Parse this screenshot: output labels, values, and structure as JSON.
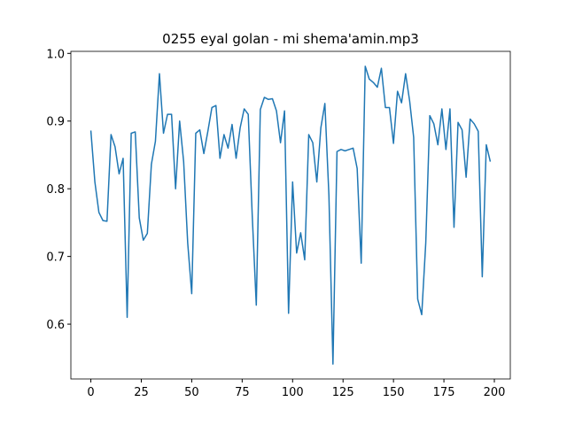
{
  "chart_data": {
    "type": "line",
    "title": "0255 eyal golan - mi shema'amin.mp3",
    "x": [
      0,
      2,
      4,
      6,
      8,
      10,
      12,
      14,
      16,
      18,
      20,
      22,
      24,
      26,
      28,
      30,
      32,
      34,
      36,
      38,
      40,
      42,
      44,
      46,
      48,
      50,
      52,
      54,
      56,
      58,
      60,
      62,
      64,
      66,
      68,
      70,
      72,
      74,
      76,
      78,
      80,
      82,
      84,
      86,
      88,
      90,
      92,
      94,
      96,
      98,
      100,
      102,
      104,
      106,
      108,
      110,
      112,
      114,
      116,
      118,
      120,
      122,
      124,
      126,
      128,
      130,
      132,
      134,
      136,
      138,
      140,
      142,
      144,
      146,
      148,
      150,
      152,
      154,
      156,
      158,
      160,
      162,
      164,
      166,
      168,
      170,
      172,
      174,
      176,
      178,
      180,
      182,
      184,
      186,
      188,
      190,
      192,
      194,
      196,
      198
    ],
    "series": [
      {
        "name": "",
        "color": "#1f77b4",
        "values": [
          0.886,
          0.81,
          0.765,
          0.753,
          0.752,
          0.88,
          0.862,
          0.822,
          0.845,
          0.61,
          0.882,
          0.884,
          0.757,
          0.724,
          0.734,
          0.836,
          0.87,
          0.97,
          0.882,
          0.91,
          0.91,
          0.8,
          0.9,
          0.84,
          0.72,
          0.645,
          0.882,
          0.887,
          0.852,
          0.885,
          0.92,
          0.923,
          0.845,
          0.88,
          0.86,
          0.895,
          0.845,
          0.89,
          0.918,
          0.91,
          0.76,
          0.628,
          0.917,
          0.935,
          0.932,
          0.933,
          0.915,
          0.868,
          0.915,
          0.616,
          0.81,
          0.705,
          0.735,
          0.695,
          0.88,
          0.868,
          0.81,
          0.89,
          0.926,
          0.79,
          0.541,
          0.855,
          0.858,
          0.856,
          0.858,
          0.86,
          0.83,
          0.69,
          0.981,
          0.962,
          0.957,
          0.95,
          0.978,
          0.92,
          0.92,
          0.867,
          0.944,
          0.927,
          0.97,
          0.93,
          0.876,
          0.637,
          0.614,
          0.72,
          0.908,
          0.896,
          0.865,
          0.918,
          0.858,
          0.918,
          0.743,
          0.898,
          0.887,
          0.817,
          0.903,
          0.896,
          0.885,
          0.67,
          0.865,
          0.84
        ]
      }
    ],
    "xlim": [
      -9.9,
      207.9
    ],
    "xticks": [
      0,
      25,
      50,
      75,
      100,
      125,
      150,
      175,
      200
    ],
    "ylim": [
      0.519,
      1.003
    ],
    "yticks": [
      0.6,
      0.7,
      0.8,
      0.9,
      {
        "value": 1,
        "label": "1.0"
      }
    ],
    "grid": false
  }
}
